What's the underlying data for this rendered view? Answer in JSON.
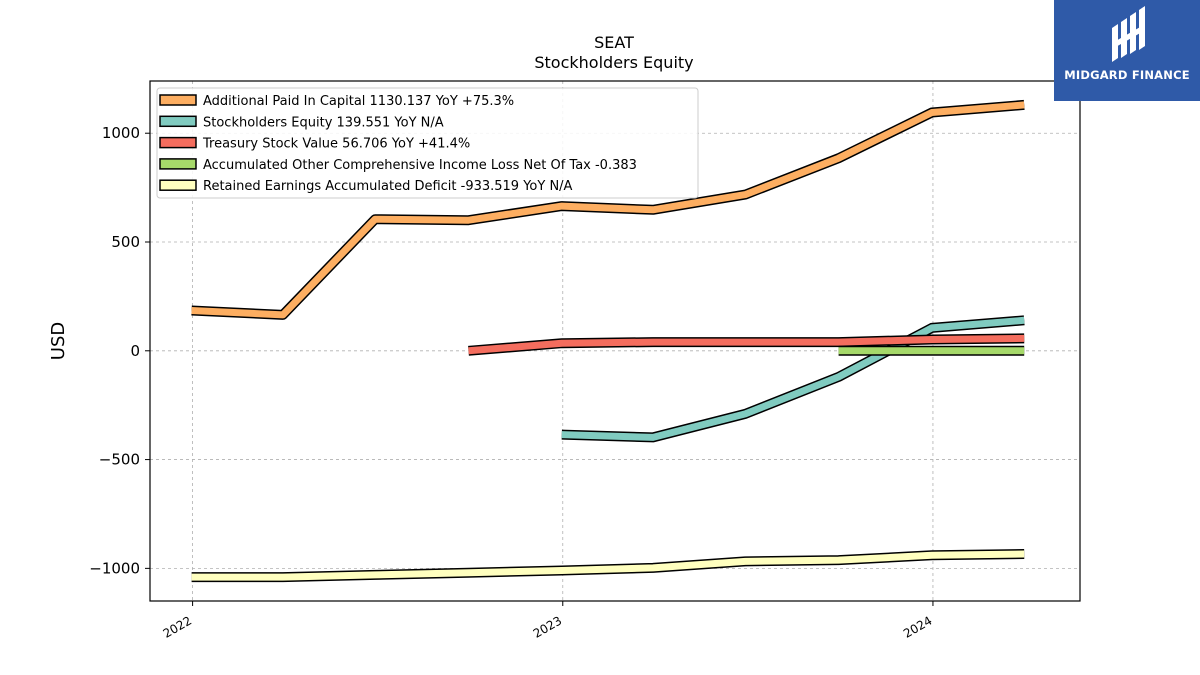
{
  "logo": {
    "text": "MIDGARD FINANCE",
    "bg_color": "#2f5aa8"
  },
  "chart_data": {
    "type": "line",
    "title": "SEAT",
    "subtitle": "Stockholders  Equity",
    "ylabel": "USD",
    "xlabel": "",
    "ylim": [
      -1150,
      1240
    ],
    "xlim": [
      "2021-11-20",
      "2024-05-25"
    ],
    "grid": true,
    "legend_position": "top-left",
    "x_ticks": [
      {
        "date": "2022-01-01",
        "label": "2022"
      },
      {
        "date": "2023-01-01",
        "label": "2023"
      },
      {
        "date": "2024-01-01",
        "label": "2024"
      }
    ],
    "y_ticks": [
      {
        "value": 1000,
        "label": "1000"
      },
      {
        "value": 500,
        "label": "500"
      },
      {
        "value": 0,
        "label": "0"
      },
      {
        "value": -500,
        "label": "−500"
      },
      {
        "value": -1000,
        "label": "−1000"
      }
    ],
    "series": [
      {
        "name": "Additional Paid In Capital",
        "legend": "Additional Paid In Capital  1130.137 YoY +75.3%",
        "color": "#fdae61",
        "points": [
          [
            "2021-12-31",
            185
          ],
          [
            "2022-03-31",
            165
          ],
          [
            "2022-06-30",
            605
          ],
          [
            "2022-09-30",
            600
          ],
          [
            "2022-12-31",
            665
          ],
          [
            "2023-03-31",
            648
          ],
          [
            "2023-06-30",
            718
          ],
          [
            "2023-09-30",
            885
          ],
          [
            "2023-12-31",
            1095
          ],
          [
            "2024-03-31",
            1130
          ]
        ]
      },
      {
        "name": "Stockholders Equity",
        "legend": "Stockholders Equity  139.551 YoY N/A",
        "color": "#80cbc0",
        "points": [
          [
            "2022-12-31",
            -385
          ],
          [
            "2023-03-31",
            -398
          ],
          [
            "2023-06-30",
            -290
          ],
          [
            "2023-09-30",
            -120
          ],
          [
            "2023-12-31",
            105
          ],
          [
            "2024-03-31",
            140
          ]
        ]
      },
      {
        "name": "Treasury Stock Value",
        "legend": "Treasury Stock Value  56.706 YoY +41.4%",
        "color": "#f46d5e",
        "points": [
          [
            "2022-09-30",
            0
          ],
          [
            "2022-12-31",
            35
          ],
          [
            "2023-03-31",
            40
          ],
          [
            "2023-06-30",
            40
          ],
          [
            "2023-09-30",
            40
          ],
          [
            "2023-12-31",
            52
          ],
          [
            "2024-03-31",
            57
          ]
        ]
      },
      {
        "name": "Accumulated Other Comprehensive Income Loss Net Of Tax",
        "legend": "Accumulated Other Comprehensive Income Loss Net Of Tax  -0.383",
        "color": "#a6d96a",
        "points": [
          [
            "2023-09-30",
            0
          ],
          [
            "2023-12-31",
            0
          ],
          [
            "2024-03-31",
            0
          ]
        ]
      },
      {
        "name": "Retained Earnings Accumulated Deficit",
        "legend": "Retained Earnings Accumulated Deficit  -933.519 YoY N/A",
        "color": "#ffffbf",
        "points": [
          [
            "2021-12-31",
            -1040
          ],
          [
            "2022-03-31",
            -1040
          ],
          [
            "2022-06-30",
            -1030
          ],
          [
            "2022-09-30",
            -1020
          ],
          [
            "2022-12-31",
            -1010
          ],
          [
            "2023-03-31",
            -998
          ],
          [
            "2023-06-30",
            -968
          ],
          [
            "2023-09-30",
            -962
          ],
          [
            "2023-12-31",
            -940
          ],
          [
            "2024-03-31",
            -934
          ]
        ]
      }
    ]
  }
}
